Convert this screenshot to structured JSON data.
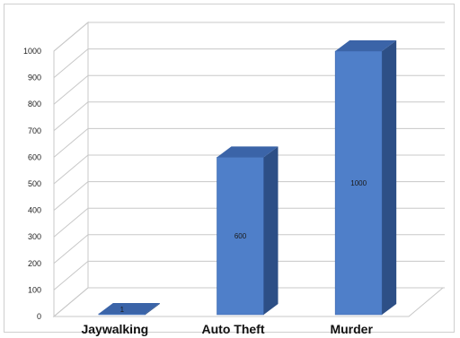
{
  "chart_data": {
    "type": "bar",
    "title": "",
    "xlabel": "",
    "ylabel": "",
    "categories": [
      "Jaywalking",
      "Auto Theft",
      "Murder"
    ],
    "values": [
      1,
      600,
      1000
    ],
    "data_labels": [
      "1",
      "600",
      "1000"
    ],
    "ylim": [
      0,
      1000
    ],
    "yticks": [
      0,
      100,
      200,
      300,
      400,
      500,
      600,
      700,
      800,
      900,
      1000
    ],
    "grid": true,
    "legend": "none",
    "style": "3d-column",
    "colors": {
      "bar_front": "#4f7fc9",
      "bar_side": "#2d4f86",
      "bar_top": "#3b64a8",
      "grid": "#c8c8c8",
      "axis_text": "#222222"
    }
  }
}
